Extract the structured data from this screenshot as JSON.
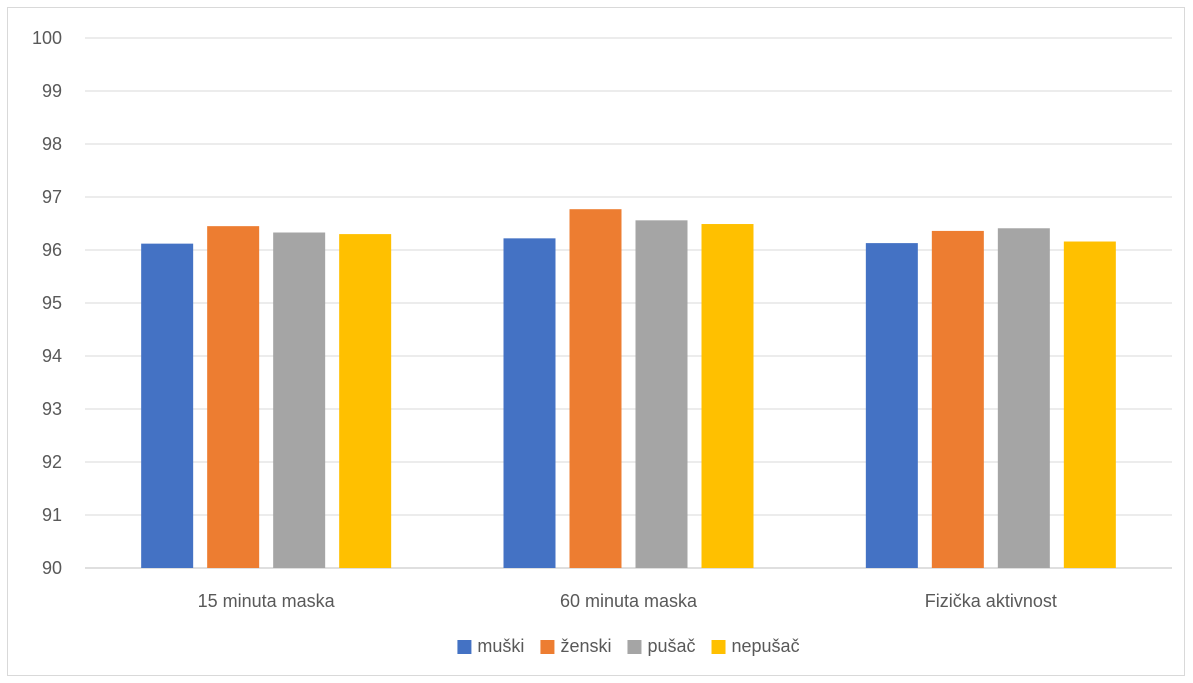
{
  "chart_data": {
    "type": "bar",
    "title": "",
    "xlabel": "",
    "ylabel": "",
    "categories": [
      "15 minuta maska",
      "60 minuta maska",
      "Fizička aktivnost"
    ],
    "series": [
      {
        "name": "muški",
        "color": "#4472C4",
        "values": [
          96.12,
          96.22,
          96.13
        ]
      },
      {
        "name": "ženski",
        "color": "#ED7D31",
        "values": [
          96.45,
          96.77,
          96.36
        ]
      },
      {
        "name": "pušač",
        "color": "#A5A5A5",
        "values": [
          96.33,
          96.56,
          96.41
        ]
      },
      {
        "name": "nepušač",
        "color": "#FFC000",
        "values": [
          96.3,
          96.49,
          96.16
        ]
      }
    ],
    "ylim": [
      90,
      100
    ],
    "yticks": [
      90,
      91,
      92,
      93,
      94,
      95,
      96,
      97,
      98,
      99,
      100
    ],
    "grid": true,
    "legend_position": "bottom"
  }
}
